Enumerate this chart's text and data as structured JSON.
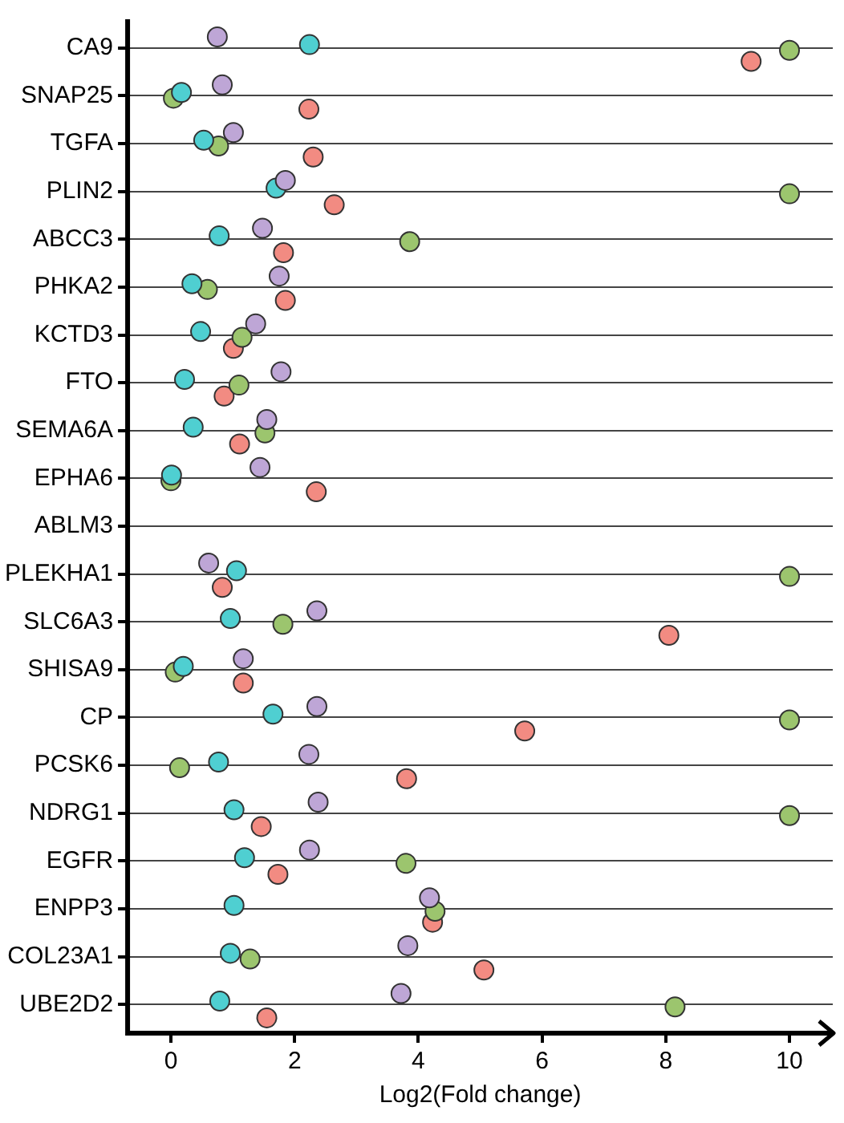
{
  "chart_data": {
    "type": "scatter",
    "orientation": "horizontal",
    "xlabel": "Log2(Fold change)",
    "categories": [
      "CA9",
      "SNAP25",
      "TGFA",
      "PLIN2",
      "ABCC3",
      "PHKA2",
      "KCTD3",
      "FTO",
      "SEMA6A",
      "EPHA6",
      "ABLM3",
      "PLEKHA1",
      "SLC6A3",
      "SHISA9",
      "CP",
      "PCSK6",
      "NDRG1",
      "EGFR",
      "ENPP3",
      "COL23A1",
      "UBE2D2"
    ],
    "series": [
      {
        "color": "#bea6d6",
        "values": [
          0.75,
          0.83,
          1.01,
          1.85,
          1.48,
          1.75,
          1.37,
          1.78,
          1.55,
          1.44,
          null,
          0.61,
          2.36,
          1.17,
          2.36,
          2.23,
          2.38,
          2.24,
          4.18,
          3.83,
          3.72
        ]
      },
      {
        "color": "#4fcfd1",
        "values": [
          2.24,
          0.17,
          0.53,
          1.7,
          0.78,
          0.34,
          0.48,
          0.22,
          0.36,
          0.01,
          null,
          1.06,
          0.96,
          0.2,
          1.65,
          0.77,
          1.02,
          1.19,
          1.02,
          0.96,
          0.79
        ]
      },
      {
        "color": "#9cc56e",
        "values": [
          10,
          0.04,
          0.77,
          10,
          3.86,
          0.59,
          1.15,
          1.1,
          1.52,
          0,
          null,
          10,
          1.81,
          0.07,
          10,
          0.14,
          10,
          3.8,
          4.27,
          1.28,
          8.15
        ]
      },
      {
        "color": "#f28b82",
        "values": [
          9.38,
          2.23,
          2.3,
          2.64,
          1.82,
          1.85,
          1.01,
          0.86,
          1.11,
          2.35,
          null,
          0.83,
          8.05,
          1.17,
          5.72,
          3.81,
          1.46,
          1.73,
          4.23,
          5.06,
          1.55
        ]
      }
    ],
    "xlim": [
      -0.7,
      10.7
    ],
    "xticks": [
      0,
      2,
      4,
      6,
      8,
      10
    ],
    "grid": "y",
    "legend": false,
    "marker": "circle"
  }
}
